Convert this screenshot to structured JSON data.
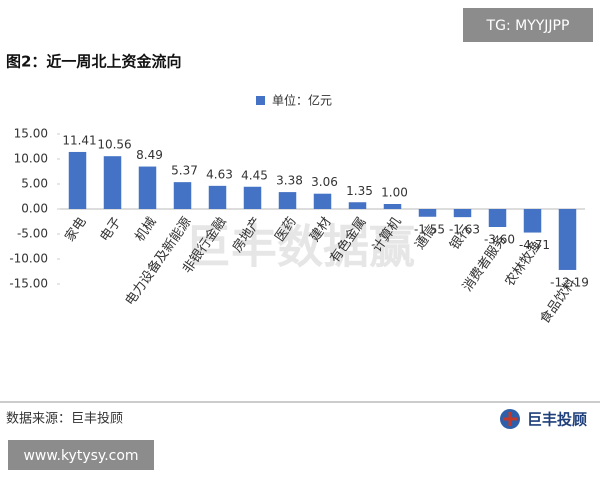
{
  "tag": "TG: MYYJJPP",
  "chart_data": {
    "type": "bar",
    "title": "图2：近一周北上资金流向",
    "categories": [
      "家电",
      "电子",
      "机械",
      "电力设备及新能源",
      "非银行金融",
      "房地产",
      "医药",
      "建材",
      "有色金属",
      "计算机",
      "通信",
      "银行",
      "消费者服务",
      "农林牧渔",
      "食品饮料"
    ],
    "series": [
      {
        "name": "单位：亿元",
        "color": "#4472c4",
        "values": [
          11.41,
          10.56,
          8.49,
          5.37,
          4.63,
          4.45,
          3.38,
          3.06,
          1.35,
          1.0,
          -1.55,
          -1.63,
          -3.6,
          -4.71,
          -12.19
        ],
        "value_labels": [
          "11.41",
          "10.56",
          "8.49",
          "5.37",
          "4.63",
          "4.45",
          "3.38",
          "3.06",
          "1.35",
          "1.00",
          "-1.55",
          "-1.63",
          "-3.60",
          "-4.71",
          "-12.19"
        ]
      }
    ],
    "ylim": [
      -15,
      15
    ],
    "yticks": [
      {
        "value": 15,
        "label": "15.00"
      },
      {
        "value": 10,
        "label": "10.00"
      },
      {
        "value": 5,
        "label": "5.00"
      },
      {
        "value": 0,
        "label": "0.00"
      },
      {
        "value": -5,
        "label": "-5.00"
      },
      {
        "value": -10,
        "label": "-10.00"
      },
      {
        "value": -15,
        "label": "-15.00"
      }
    ],
    "grid": false
  },
  "watermark": "巨丰数据赢",
  "source": "数据来源：巨丰投顾",
  "logo_text": "巨丰投顾",
  "website": "www.kytysy.com"
}
